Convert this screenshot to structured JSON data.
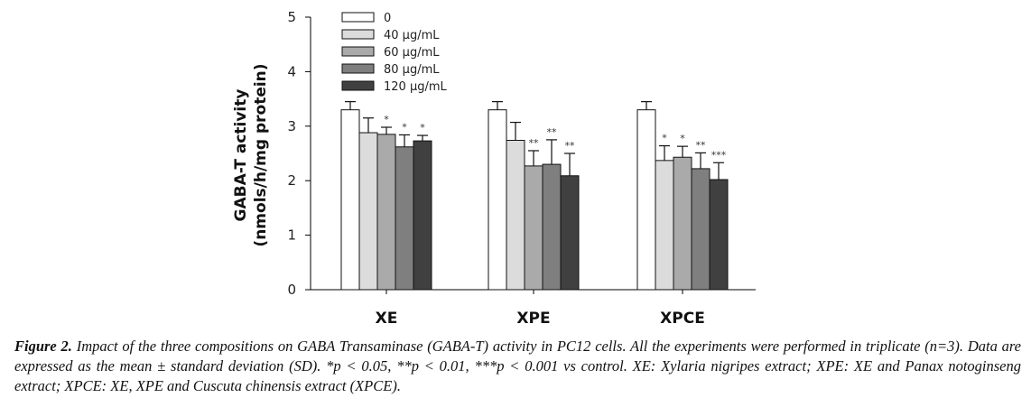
{
  "chart_data": {
    "type": "bar",
    "title": "",
    "xlabel": "",
    "ylabel": "GABA-T activity",
    "ylabel_units": "(nmols/h/mg protein)",
    "ylim": [
      0,
      5
    ],
    "yticks": [
      0,
      1,
      2,
      3,
      4,
      5
    ],
    "grid": false,
    "legend_position": "top-left",
    "categories": [
      "XE",
      "XPE",
      "XPCE"
    ],
    "series": [
      {
        "name": "0",
        "color": "#ffffff",
        "values": [
          3.3,
          3.3,
          3.3
        ],
        "errors": [
          0.15,
          0.15,
          0.15
        ],
        "significance": [
          "",
          "",
          ""
        ]
      },
      {
        "name": "40 µg/mL",
        "color": "#dcdcdc",
        "values": [
          2.88,
          2.74,
          2.37
        ],
        "errors": [
          0.27,
          0.33,
          0.27
        ],
        "significance": [
          "",
          "",
          "*"
        ]
      },
      {
        "name": "60 µg/mL",
        "color": "#aaaaaa",
        "values": [
          2.85,
          2.27,
          2.43
        ],
        "errors": [
          0.13,
          0.28,
          0.2
        ],
        "significance": [
          "*",
          "**",
          "*"
        ]
      },
      {
        "name": "80 µg/mL",
        "color": "#7f7f7f",
        "values": [
          2.62,
          2.3,
          2.22
        ],
        "errors": [
          0.22,
          0.45,
          0.29
        ],
        "significance": [
          "*",
          "**",
          "**"
        ]
      },
      {
        "name": "120 µg/mL",
        "color": "#404040",
        "values": [
          2.73,
          2.09,
          2.02
        ],
        "errors": [
          0.1,
          0.41,
          0.31
        ],
        "significance": [
          "*",
          "**",
          "***"
        ]
      }
    ]
  },
  "caption": {
    "label": "Figure 2.",
    "text": " Impact of the three compositions on GABA Transaminase (GABA-T) activity in PC12 cells. All the experiments were performed in triplicate (n=3). Data are expressed as the mean ± standard deviation (SD). *p < 0.05, **p < 0.01, ***p < 0.001 vs control. XE: Xylaria nigripes extract; XPE: XE and Panax notoginseng extract; XPCE: XE, XPE and Cuscuta chinensis extract (XPCE)."
  }
}
